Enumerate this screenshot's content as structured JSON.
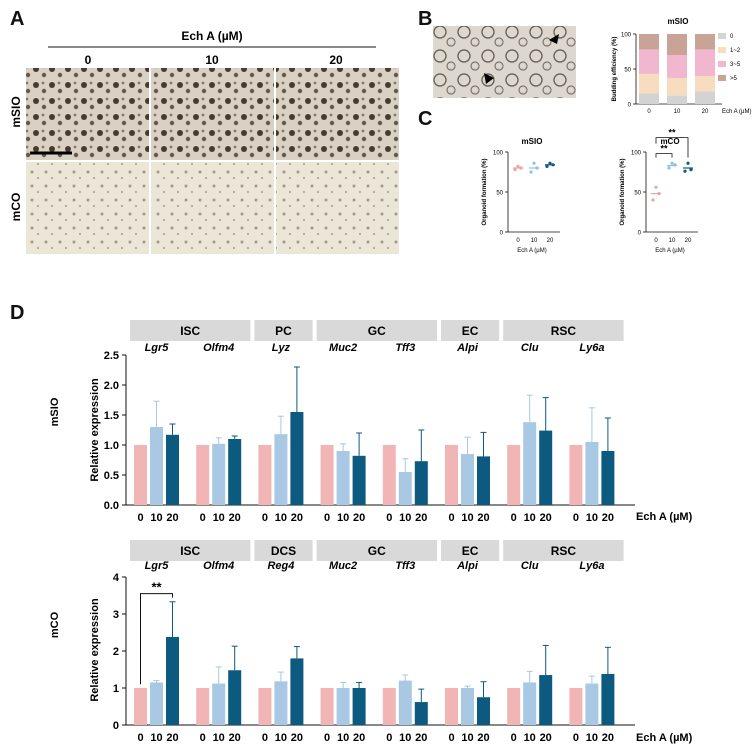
{
  "panels": {
    "A": "A",
    "B": "B",
    "C": "C",
    "D": "D"
  },
  "panelA": {
    "title": "Ech A (µM)",
    "columns": [
      "0",
      "10",
      "20"
    ],
    "rows": [
      "mSIO",
      "mCO"
    ]
  },
  "panelB": {
    "title": "mSIO",
    "categories": [
      "0",
      "10",
      "20"
    ],
    "xlabel": "Ech A (µM)",
    "ylabel": "Budding efficiency (%)",
    "yticks": [
      "0",
      "50",
      "100"
    ],
    "legend": [
      "0",
      "1~2",
      "3~5",
      ">5"
    ],
    "colors": [
      "#d3d3d3",
      "#f7dcc0",
      "#f0b7cf",
      "#c9a496"
    ],
    "stacks": [
      [
        15,
        28,
        35,
        22
      ],
      [
        12,
        25,
        33,
        30
      ],
      [
        18,
        22,
        38,
        22
      ]
    ]
  },
  "panelC": [
    {
      "title": "mSIO",
      "ylabel": "Organoid formation (%)",
      "xlabel": "Ech A (µM)",
      "categories": [
        "0",
        "10",
        "20"
      ],
      "yticks": [
        "0",
        "50",
        "100"
      ],
      "means": [
        80,
        80,
        84
      ],
      "points": [
        [
          78,
          82,
          80
        ],
        [
          75,
          86,
          80
        ],
        [
          82,
          86,
          84
        ]
      ],
      "sig": []
    },
    {
      "title": "mCO",
      "ylabel": "Organoid formation (%)",
      "xlabel": "Ech A (µM)",
      "categories": [
        "0",
        "10",
        "20"
      ],
      "yticks": [
        "0",
        "50",
        "100"
      ],
      "means": [
        48,
        83,
        80
      ],
      "points": [
        [
          40,
          56,
          48
        ],
        [
          80,
          86,
          84
        ],
        [
          76,
          86,
          78
        ]
      ],
      "sig": [
        "**",
        "**"
      ]
    }
  ],
  "chart_data": [
    {
      "type": "bar",
      "title": "mSIO",
      "ylabel": "Relative expression",
      "xlabel": "Ech A (µM)",
      "ylim": [
        0,
        2.5
      ],
      "yticks": [
        "0.0",
        "0.5",
        "1.0",
        "1.5",
        "2.0",
        "2.5"
      ],
      "categories": [
        "0",
        "10",
        "20"
      ],
      "headers": [
        {
          "name": "ISC",
          "span": 2
        },
        {
          "name": "PC",
          "span": 1
        },
        {
          "name": "GC",
          "span": 2
        },
        {
          "name": "EC",
          "span": 1
        },
        {
          "name": "RSC",
          "span": 2
        }
      ],
      "genes": [
        "Lgr5",
        "Olfm4",
        "Lyz",
        "Muc2",
        "Tff3",
        "Alpi",
        "Clu",
        "Ly6a"
      ],
      "values": [
        [
          1,
          1.3,
          1.17
        ],
        [
          1,
          1.02,
          1.1
        ],
        [
          1,
          1.18,
          1.55
        ],
        [
          1,
          0.9,
          0.82
        ],
        [
          1,
          0.55,
          0.73
        ],
        [
          1,
          0.85,
          0.81
        ],
        [
          1,
          1.38,
          1.24
        ],
        [
          1,
          1.05,
          0.9
        ]
      ],
      "errors": [
        [
          0,
          0.43,
          0.18
        ],
        [
          0,
          0.1,
          0.05
        ],
        [
          0,
          0.3,
          0.75
        ],
        [
          0,
          0.12,
          0.38
        ],
        [
          0,
          0.22,
          0.52
        ],
        [
          0,
          0.28,
          0.4
        ],
        [
          0,
          0.45,
          0.55
        ],
        [
          0,
          0.57,
          0.55
        ]
      ],
      "sig": []
    },
    {
      "type": "bar",
      "title": "mCO",
      "ylabel": "Relative expression",
      "xlabel": "Ech A (µM)",
      "ylim": [
        0,
        4
      ],
      "yticks": [
        "0",
        "1",
        "2",
        "3",
        "4"
      ],
      "categories": [
        "0",
        "10",
        "20"
      ],
      "headers": [
        {
          "name": "ISC",
          "span": 2
        },
        {
          "name": "DCS",
          "span": 1
        },
        {
          "name": "GC",
          "span": 2
        },
        {
          "name": "EC",
          "span": 1
        },
        {
          "name": "RSC",
          "span": 2
        }
      ],
      "genes": [
        "Lgr5",
        "Olfm4",
        "Reg4",
        "Muc2",
        "Tff3",
        "Alpi",
        "Clu",
        "Ly6a"
      ],
      "values": [
        [
          1,
          1.15,
          2.38
        ],
        [
          1,
          1.12,
          1.48
        ],
        [
          1,
          1.18,
          1.8
        ],
        [
          1,
          1.0,
          1.0
        ],
        [
          1,
          1.2,
          0.62
        ],
        [
          1,
          1.0,
          0.75
        ],
        [
          1,
          1.15,
          1.35
        ],
        [
          1,
          1.12,
          1.38
        ]
      ],
      "errors": [
        [
          0,
          0.05,
          0.95
        ],
        [
          0,
          0.45,
          0.65
        ],
        [
          0,
          0.25,
          0.32
        ],
        [
          0,
          0.15,
          0.15
        ],
        [
          0,
          0.15,
          0.35
        ],
        [
          0,
          0.05,
          0.42
        ],
        [
          0,
          0.3,
          0.8
        ],
        [
          0,
          0.2,
          0.72
        ]
      ],
      "sig": [
        "**"
      ]
    }
  ],
  "barColors": [
    "#f1b5b5",
    "#a8c8e3",
    "#0d5a80"
  ]
}
